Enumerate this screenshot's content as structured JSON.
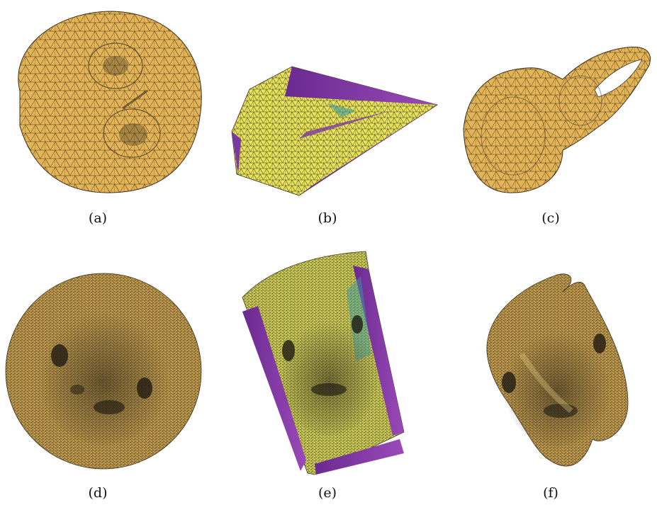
{
  "figure": {
    "panels": [
      {
        "id": "a",
        "caption": "(a)",
        "description": "mesh-disk-flattened"
      },
      {
        "id": "b",
        "caption": "(b)",
        "description": "mesh-tetragon-distorted"
      },
      {
        "id": "c",
        "caption": "(c)",
        "description": "mesh-irregular-shape"
      },
      {
        "id": "d",
        "caption": "(d)",
        "description": "dense-mesh-disk-face"
      },
      {
        "id": "e",
        "caption": "(e)",
        "description": "dense-mesh-quad-distorted-face"
      },
      {
        "id": "f",
        "caption": "(f)",
        "description": "dense-mesh-irregular-face"
      }
    ],
    "colors": {
      "mesh_gold": "#e4b458",
      "mesh_yellow": "#e8e35a",
      "distortion_purple": "#8a3aa6",
      "distortion_teal": "#3a9aa0",
      "edge": "#3a3020"
    }
  }
}
